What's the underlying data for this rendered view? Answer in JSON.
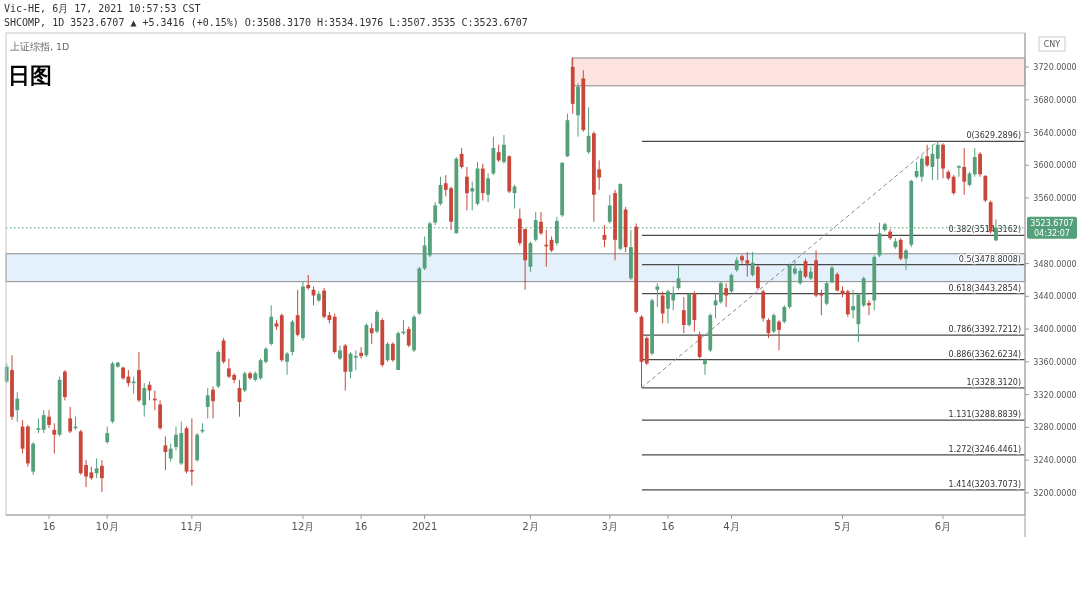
{
  "chart_data": {
    "type": "candlestick",
    "title": "日图",
    "subtitle": "上证综指, 1D",
    "annotations": [
      "Vic-HE, 6月 17, 2021 10:57:53 CST",
      "SHCOMP, 1D 3523.6707 ▲ +5.3416 (+0.15%) O:3508.3170 H:3534.1976 L:3507.3535 C:3523.6707",
      "CNY",
      "04:32:07"
    ],
    "categories": [
      null,
      null,
      null,
      null,
      null,
      null,
      null,
      null,
      "16",
      null,
      null,
      null,
      null,
      null,
      null,
      null,
      null,
      null,
      null,
      "10月",
      null,
      null,
      null,
      null,
      null,
      null,
      null,
      null,
      null,
      null,
      null,
      null,
      null,
      null,
      null,
      "11月",
      null,
      null,
      null,
      null,
      null,
      null,
      null,
      null,
      null,
      null,
      null,
      null,
      null,
      null,
      null,
      null,
      null,
      null,
      null,
      null,
      "12月",
      null,
      null,
      null,
      null,
      null,
      null,
      null,
      null,
      null,
      null,
      "16",
      null,
      null,
      null,
      null,
      null,
      null,
      null,
      null,
      null,
      null,
      null,
      "2021",
      null,
      null,
      null,
      null,
      null,
      null,
      null,
      null,
      null,
      null,
      null,
      null,
      null,
      null,
      null,
      null,
      null,
      null,
      null,
      "2月",
      null,
      null,
      null,
      null,
      null,
      null,
      null,
      null,
      null,
      null,
      null,
      null,
      null,
      null,
      "3月",
      null,
      null,
      null,
      null,
      null,
      null,
      null,
      null,
      null,
      null,
      "16",
      null,
      null,
      null,
      null,
      null,
      null,
      null,
      null,
      null,
      null,
      null,
      "4月",
      null,
      null,
      null,
      null,
      null,
      null,
      null,
      null,
      null,
      null,
      null,
      null,
      null,
      null,
      null,
      null,
      null,
      null,
      null,
      null,
      "5月",
      null,
      null,
      null,
      null,
      null,
      null,
      null,
      null,
      null,
      null,
      null,
      null,
      null,
      null,
      null,
      null,
      null,
      null,
      "6月",
      null,
      null,
      null,
      null,
      null,
      null,
      null,
      null,
      null,
      null
    ],
    "ohlc": [
      [
        3336,
        3358,
        3334,
        3354
      ],
      [
        3350,
        3368,
        3289,
        3293
      ],
      [
        3301,
        3323,
        3287,
        3315
      ],
      [
        3281,
        3289,
        3248,
        3254
      ],
      [
        3281,
        3283,
        3232,
        3236
      ],
      [
        3226,
        3262,
        3222,
        3260
      ],
      [
        3277,
        3291,
        3273,
        3279
      ],
      [
        3277,
        3301,
        3273,
        3295
      ],
      [
        3293,
        3301,
        3279,
        3283
      ],
      [
        3277,
        3285,
        3248,
        3271
      ],
      [
        3271,
        3342,
        3269,
        3338
      ],
      [
        3348,
        3350,
        3313,
        3317
      ],
      [
        3291,
        3305,
        3273,
        3275
      ],
      [
        3279,
        3293,
        3277,
        3281
      ],
      [
        3275,
        3277,
        3222,
        3224
      ],
      [
        3234,
        3240,
        3207,
        3220
      ],
      [
        3225,
        3232,
        3216,
        3218
      ],
      [
        3224,
        3242,
        3218,
        3230
      ],
      [
        3233,
        3240,
        3201,
        3218
      ],
      [
        3262,
        3281,
        3260,
        3273
      ],
      [
        3287,
        3360,
        3285,
        3358
      ],
      [
        3354,
        3360,
        3353,
        3359
      ],
      [
        3353,
        3354,
        3338,
        3340
      ],
      [
        3342,
        3350,
        3330,
        3334
      ],
      [
        3334,
        3342,
        3321,
        3336
      ],
      [
        3350,
        3372,
        3311,
        3313
      ],
      [
        3307,
        3334,
        3293,
        3328
      ],
      [
        3332,
        3336,
        3313,
        3325
      ],
      [
        3315,
        3325,
        3301,
        3313
      ],
      [
        3308,
        3313,
        3277,
        3279
      ],
      [
        3258,
        3269,
        3228,
        3250
      ],
      [
        3242,
        3260,
        3238,
        3254
      ],
      [
        3256,
        3281,
        3252,
        3271
      ],
      [
        3236,
        3287,
        3234,
        3273
      ],
      [
        3279,
        3281,
        3224,
        3226
      ],
      [
        3228,
        3291,
        3209,
        3226
      ],
      [
        3240,
        3273,
        3238,
        3271
      ],
      [
        3275,
        3285,
        3273,
        3277
      ],
      [
        3305,
        3328,
        3291,
        3319
      ],
      [
        3326,
        3330,
        3291,
        3312
      ],
      [
        3330,
        3374,
        3328,
        3372
      ],
      [
        3386,
        3389,
        3358,
        3360
      ],
      [
        3352,
        3364,
        3340,
        3342
      ],
      [
        3344,
        3346,
        3334,
        3338
      ],
      [
        3328,
        3338,
        3293,
        3311
      ],
      [
        3325,
        3348,
        3323,
        3346
      ],
      [
        3346,
        3348,
        3338,
        3340
      ],
      [
        3338,
        3348,
        3336,
        3346
      ],
      [
        3340,
        3364,
        3338,
        3362
      ],
      [
        3360,
        3378,
        3358,
        3376
      ],
      [
        3382,
        3429,
        3380,
        3415
      ],
      [
        3407,
        3411,
        3399,
        3403
      ],
      [
        3417,
        3419,
        3360,
        3362
      ],
      [
        3360,
        3372,
        3344,
        3370
      ],
      [
        3372,
        3411,
        3368,
        3409
      ],
      [
        3417,
        3448,
        3391,
        3393
      ],
      [
        3389,
        3458,
        3386,
        3452
      ],
      [
        3454,
        3466,
        3448,
        3450
      ],
      [
        3448,
        3452,
        3429,
        3441
      ],
      [
        3435,
        3446,
        3433,
        3443
      ],
      [
        3447,
        3450,
        3413,
        3415
      ],
      [
        3417,
        3421,
        3407,
        3411
      ],
      [
        3415,
        3419,
        3370,
        3372
      ],
      [
        3364,
        3380,
        3362,
        3374
      ],
      [
        3380,
        3382,
        3325,
        3348
      ],
      [
        3348,
        3372,
        3340,
        3370
      ],
      [
        3365,
        3374,
        3350,
        3367
      ],
      [
        3371,
        3378,
        3364,
        3367
      ],
      [
        3368,
        3407,
        3366,
        3405
      ],
      [
        3401,
        3407,
        3382,
        3395
      ],
      [
        3397,
        3423,
        3395,
        3421
      ],
      [
        3411,
        3413,
        3354,
        3356
      ],
      [
        3362,
        3384,
        3360,
        3382
      ],
      [
        3382,
        3384,
        3360,
        3362
      ],
      [
        3350,
        3397,
        3350,
        3395
      ],
      [
        3395,
        3411,
        3393,
        3397
      ],
      [
        3400,
        3403,
        3378,
        3380
      ],
      [
        3374,
        3417,
        3372,
        3415
      ],
      [
        3419,
        3476,
        3417,
        3474
      ],
      [
        3474,
        3513,
        3472,
        3502
      ],
      [
        3490,
        3531,
        3488,
        3529
      ],
      [
        3530,
        3555,
        3527,
        3551
      ],
      [
        3553,
        3586,
        3551,
        3576
      ],
      [
        3578,
        3588,
        3562,
        3570
      ],
      [
        3572,
        3574,
        3521,
        3531
      ],
      [
        3517,
        3610,
        3517,
        3608
      ],
      [
        3614,
        3621,
        3596,
        3598
      ],
      [
        3586,
        3598,
        3545,
        3566
      ],
      [
        3568,
        3580,
        3545,
        3572
      ],
      [
        3553,
        3604,
        3551,
        3596
      ],
      [
        3596,
        3602,
        3557,
        3566
      ],
      [
        3564,
        3590,
        3555,
        3584
      ],
      [
        3590,
        3635,
        3588,
        3621
      ],
      [
        3616,
        3625,
        3604,
        3606
      ],
      [
        3604,
        3637,
        3602,
        3625
      ],
      [
        3611,
        3612,
        3566,
        3568
      ],
      [
        3566,
        3576,
        3547,
        3574
      ],
      [
        3535,
        3547,
        3502,
        3505
      ],
      [
        3522,
        3523,
        3448,
        3484
      ],
      [
        3476,
        3507,
        3470,
        3505
      ],
      [
        3509,
        3543,
        3507,
        3533
      ],
      [
        3531,
        3543,
        3515,
        3517
      ],
      [
        3503,
        3521,
        3476,
        3501
      ],
      [
        3509,
        3513,
        3494,
        3496
      ],
      [
        3505,
        3537,
        3502,
        3532
      ],
      [
        3539,
        3604,
        3537,
        3603
      ],
      [
        3611,
        3663,
        3610,
        3655
      ],
      [
        3720,
        3731,
        3663,
        3675
      ],
      [
        3661,
        3700,
        3635,
        3696
      ],
      [
        3706,
        3716,
        3641,
        3643
      ],
      [
        3616,
        3671,
        3614,
        3636
      ],
      [
        3639,
        3641,
        3531,
        3564
      ],
      [
        3595,
        3606,
        3570,
        3585
      ],
      [
        3515,
        3527,
        3500,
        3509
      ],
      [
        3531,
        3564,
        3529,
        3551
      ],
      [
        3566,
        3570,
        3484,
        3509
      ],
      [
        3498,
        3578,
        3496,
        3577
      ],
      [
        3546,
        3549,
        3494,
        3500
      ],
      [
        3462,
        3521,
        3460,
        3500
      ],
      [
        3525,
        3529,
        3419,
        3421
      ],
      [
        3415,
        3417,
        3328.31,
        3360
      ],
      [
        3389,
        3391,
        3356,
        3358
      ],
      [
        3370,
        3437,
        3368,
        3435
      ],
      [
        3448,
        3456,
        3427,
        3452
      ],
      [
        3441,
        3446,
        3407,
        3419
      ],
      [
        3425,
        3448,
        3407,
        3446
      ],
      [
        3435,
        3452,
        3423,
        3444
      ],
      [
        3450,
        3478,
        3448,
        3462
      ],
      [
        3423,
        3439,
        3395,
        3405
      ],
      [
        3405,
        3444,
        3403,
        3443
      ],
      [
        3444,
        3446,
        3397,
        3411
      ],
      [
        3393,
        3397,
        3364,
        3366
      ],
      [
        3357,
        3364,
        3344,
        3362
      ],
      [
        3374,
        3419,
        3372,
        3417
      ],
      [
        3429,
        3443,
        3413,
        3435
      ],
      [
        3433,
        3458,
        3431,
        3456
      ],
      [
        3450,
        3456,
        3427,
        3441
      ],
      [
        3446,
        3468,
        3443,
        3466
      ],
      [
        3472,
        3488,
        3470,
        3484
      ],
      [
        3489,
        3491,
        3480,
        3484
      ],
      [
        3484,
        3494,
        3464,
        3480
      ],
      [
        3466,
        3494,
        3464,
        3481
      ],
      [
        3476,
        3478,
        3448,
        3450
      ],
      [
        3446,
        3448,
        3409,
        3413
      ],
      [
        3411,
        3413,
        3389,
        3395
      ],
      [
        3397,
        3419,
        3395,
        3417
      ],
      [
        3409,
        3411,
        3374,
        3399
      ],
      [
        3409,
        3429,
        3407,
        3427
      ],
      [
        3427,
        3480,
        3425,
        3478
      ],
      [
        3468,
        3484,
        3466,
        3474
      ],
      [
        3456,
        3474,
        3454,
        3471
      ],
      [
        3483,
        3486,
        3462,
        3464
      ],
      [
        3462,
        3476,
        3460,
        3470
      ],
      [
        3484,
        3496,
        3439,
        3441
      ],
      [
        3443,
        3448,
        3417,
        3441
      ],
      [
        3431,
        3458,
        3429,
        3456
      ],
      [
        3457,
        3477,
        3456,
        3475
      ],
      [
        3467,
        3469,
        3446,
        3447
      ],
      [
        3447,
        3452,
        3439,
        3443
      ],
      [
        3446,
        3448,
        3415,
        3418
      ],
      [
        3423,
        3448,
        3413,
        3428
      ],
      [
        3406,
        3444,
        3384,
        3442
      ],
      [
        3429,
        3464,
        3427,
        3462
      ],
      [
        3432,
        3435,
        3417,
        3429
      ],
      [
        3435,
        3490,
        3423,
        3488
      ],
      [
        3490,
        3530,
        3488,
        3517
      ],
      [
        3521,
        3530,
        3519,
        3528
      ],
      [
        3519,
        3522,
        3509,
        3511
      ],
      [
        3500,
        3511,
        3498,
        3507
      ],
      [
        3509,
        3511,
        3484,
        3486
      ],
      [
        3486,
        3498,
        3472,
        3496
      ],
      [
        3503,
        3582,
        3500,
        3581
      ],
      [
        3586,
        3604,
        3584,
        3593
      ],
      [
        3586,
        3612,
        3580,
        3608
      ],
      [
        3611,
        3625,
        3598,
        3600
      ],
      [
        3598,
        3625,
        3582,
        3614
      ],
      [
        3608,
        3629.29,
        3582,
        3625
      ],
      [
        3625,
        3627,
        3584,
        3596
      ],
      [
        3592,
        3594,
        3582,
        3584
      ],
      [
        3586,
        3588,
        3564,
        3566
      ],
      [
        3597,
        3600,
        3586,
        3599
      ],
      [
        3598,
        3621,
        3564,
        3580
      ],
      [
        3576,
        3592,
        3574,
        3590
      ],
      [
        3589,
        3621,
        3586,
        3610
      ],
      [
        3614,
        3616,
        3586,
        3589
      ],
      [
        3587,
        3588,
        3555,
        3557
      ],
      [
        3555,
        3557,
        3517,
        3519
      ],
      [
        3508.317,
        3534.1976,
        3507.3535,
        3523.6707
      ]
    ],
    "colors": [
      "#53a07a",
      "#c9473a",
      "#53a07a",
      "#c9473a",
      "#c9473a",
      "#53a07a",
      "#53a07a",
      "#53a07a",
      "#c9473a",
      "#c9473a",
      "#53a07a",
      "#c9473a",
      "#c9473a",
      "#53a07a",
      "#c9473a",
      "#c9473a",
      "#c9473a",
      "#53a07a",
      "#c9473a",
      "#53a07a",
      "#53a07a",
      "#53a07a",
      "#c9473a",
      "#c9473a",
      "#53a07a",
      "#c9473a",
      "#53a07a",
      "#c9473a",
      "#c9473a",
      "#c9473a",
      "#c9473a",
      "#53a07a",
      "#53a07a",
      "#53a07a",
      "#c9473a",
      "#c9473a",
      "#53a07a",
      "#53a07a",
      "#53a07a",
      "#c9473a",
      "#53a07a",
      "#c9473a",
      "#c9473a",
      "#c9473a",
      "#c9473a",
      "#53a07a",
      "#c9473a",
      "#53a07a",
      "#53a07a",
      "#53a07a",
      "#53a07a",
      "#c9473a",
      "#c9473a",
      "#53a07a",
      "#53a07a",
      "#c9473a",
      "#53a07a",
      "#c9473a",
      "#c9473a",
      "#53a07a",
      "#c9473a",
      "#c9473a",
      "#c9473a",
      "#53a07a",
      "#c9473a",
      "#53a07a",
      "#53a07a",
      "#c9473a",
      "#53a07a",
      "#c9473a",
      "#53a07a",
      "#c9473a",
      "#53a07a",
      "#c9473a",
      "#53a07a",
      "#53a07a",
      "#c9473a",
      "#53a07a",
      "#53a07a",
      "#53a07a",
      "#53a07a",
      "#53a07a",
      "#53a07a",
      "#c9473a",
      "#c9473a",
      "#53a07a",
      "#c9473a",
      "#c9473a",
      "#53a07a",
      "#53a07a",
      "#c9473a",
      "#53a07a",
      "#53a07a",
      "#c9473a",
      "#53a07a",
      "#c9473a",
      "#53a07a",
      "#c9473a",
      "#c9473a",
      "#53a07a",
      "#53a07a",
      "#c9473a",
      "#c9473a",
      "#c9473a",
      "#53a07a",
      "#53a07a",
      "#53a07a",
      "#c9473a",
      "#53a07a",
      "#c9473a",
      "#53a07a",
      "#c9473a",
      "#c9473a",
      "#c9473a",
      "#53a07a",
      "#c9473a",
      "#53a07a",
      "#c9473a",
      "#53a07a",
      "#c9473a",
      "#c9473a",
      "#c9473a",
      "#53a07a",
      "#53a07a",
      "#c9473a",
      "#53a07a",
      "#53a07a",
      "#53a07a",
      "#c9473a",
      "#53a07a",
      "#c9473a",
      "#c9473a",
      "#53a07a",
      "#53a07a",
      "#53a07a",
      "#53a07a",
      "#c9473a",
      "#53a07a",
      "#53a07a",
      "#c9473a",
      "#c9473a",
      "#53a07a",
      "#c9473a",
      "#c9473a",
      "#c9473a",
      "#53a07a",
      "#c9473a",
      "#53a07a",
      "#53a07a",
      "#53a07a",
      "#53a07a",
      "#c9473a",
      "#53a07a",
      "#c9473a",
      "#c9473a",
      "#53a07a",
      "#53a07a",
      "#c9473a",
      "#c9473a",
      "#c9473a",
      "#53a07a",
      "#53a07a",
      "#53a07a",
      "#c9473a",
      "#53a07a",
      "#53a07a",
      "#53a07a",
      "#c9473a",
      "#53a07a",
      "#c9473a",
      "#53a07a",
      "#53a07a",
      "#53a07a",
      "#53a07a",
      "#c9473a",
      "#53a07a",
      "#53a07a",
      "#c9473a",
      "#c9473a",
      "#c9473a",
      "#53a07a",
      "#c9473a",
      "#53a07a",
      "#53a07a",
      "#c9473a",
      "#c9473a",
      "#c9473a",
      "#53a07a"
    ],
    "series": [
      {
        "type": "line",
        "color": "#8a8a8a",
        "line_style": "dashed",
        "values": [
          null,
          null,
          null,
          null,
          null,
          null,
          null,
          null,
          null,
          null,
          null,
          null,
          null,
          null,
          null,
          null,
          null,
          null,
          null,
          null,
          null,
          null,
          null,
          null,
          null,
          null,
          null,
          null,
          null,
          null,
          null,
          null,
          null,
          null,
          null,
          null,
          null,
          null,
          null,
          null,
          null,
          null,
          null,
          null,
          null,
          null,
          null,
          null,
          null,
          null,
          null,
          null,
          null,
          null,
          null,
          null,
          null,
          null,
          null,
          null,
          null,
          null,
          null,
          null,
          null,
          null,
          null,
          null,
          null,
          null,
          null,
          null,
          null,
          null,
          null,
          null,
          null,
          null,
          null,
          null,
          null,
          null,
          null,
          null,
          null,
          null,
          null,
          null,
          null,
          null,
          null,
          null,
          null,
          null,
          null,
          null,
          null,
          null,
          null,
          null,
          null,
          null,
          null,
          null,
          null,
          null,
          null,
          null,
          null,
          null,
          null,
          null,
          null,
          null,
          null,
          null,
          null,
          null,
          null,
          null,
          3328.3,
          null,
          null,
          null,
          null,
          null,
          null,
          null,
          null,
          null,
          null,
          null,
          null,
          null,
          null,
          null,
          null,
          null,
          null,
          null,
          null,
          null,
          null,
          null,
          null,
          null,
          null,
          null,
          null,
          null,
          null,
          null,
          null,
          null,
          null,
          null,
          null,
          null,
          null,
          null,
          null,
          null,
          null,
          null,
          null,
          null,
          null,
          null,
          null,
          null,
          null,
          null,
          null,
          null,
          null,
          null,
          3629.3,
          null,
          null,
          null,
          null,
          null,
          null,
          null,
          null,
          null,
          null,
          null
        ]
      }
    ],
    "ylim": [
      3173,
      3761.5
    ],
    "yticks": [
      {
        "value": 3200,
        "label": "3200.0000"
      },
      {
        "value": 3240,
        "label": "3240.0000"
      },
      {
        "value": 3280,
        "label": "3280.0000"
      },
      {
        "value": 3320,
        "label": "3320.0000"
      },
      {
        "value": 3360,
        "label": "3360.0000"
      },
      {
        "value": 3400,
        "label": "3400.0000"
      },
      {
        "value": 3440,
        "label": "3440.0000"
      },
      {
        "value": 3480,
        "label": "3480.0000"
      },
      {
        "value": 3560,
        "label": "3560.0000"
      },
      {
        "value": 3600,
        "label": "3600.0000"
      },
      {
        "value": 3640,
        "label": "3640.0000"
      },
      {
        "value": 3680,
        "label": "3680.0000"
      },
      {
        "value": 3720,
        "label": "3720.0000"
      }
    ],
    "bands": [
      {
        "axis": "y",
        "from": 3697,
        "to": 3731,
        "color": "#fde4e1"
      },
      {
        "axis": "y",
        "from": 3458,
        "to": 3492,
        "color": "#e4f1fc"
      }
    ],
    "ref_lines": [
      {
        "axis": "y",
        "value": 3629.2896,
        "label": "0(3629.2896)",
        "color": "#4a4a4a",
        "line_style": "solid"
      },
      {
        "axis": "y",
        "value": 3514.3162,
        "label": "0.382(3514.3162)",
        "color": "#4a4a4a",
        "line_style": "solid"
      },
      {
        "axis": "y",
        "value": 3478.8008,
        "label": "0.5(3478.8008)",
        "color": "#4a4a4a",
        "line_style": "solid"
      },
      {
        "axis": "y",
        "value": 3443.2854,
        "label": "0.618(3443.2854)",
        "color": "#4a4a4a",
        "line_style": "solid"
      },
      {
        "axis": "y",
        "value": 3392.7212,
        "label": "0.786(3392.7212)",
        "color": "#4a4a4a",
        "line_style": "solid"
      },
      {
        "axis": "y",
        "value": 3362.6234,
        "label": "0.886(3362.6234)",
        "color": "#4a4a4a",
        "line_style": "solid"
      },
      {
        "axis": "y",
        "value": 3328.312,
        "label": "1(3328.3120)",
        "color": "#4a4a4a",
        "line_style": "solid"
      },
      {
        "axis": "y",
        "value": 3288.8839,
        "label": "1.131(3288.8839)",
        "color": "#4a4a4a",
        "line_style": "solid"
      },
      {
        "axis": "y",
        "value": 3246.4461,
        "label": "1.272(3246.4461)",
        "color": "#4a4a4a",
        "line_style": "solid"
      },
      {
        "axis": "y",
        "value": 3203.7073,
        "label": "1.414(3203.7073)",
        "color": "#4a4a4a",
        "line_style": "solid"
      },
      {
        "axis": "y",
        "value": 3523.6707,
        "label": "3523.6707",
        "color": "#53a07a",
        "line_style": "dotted"
      }
    ]
  }
}
